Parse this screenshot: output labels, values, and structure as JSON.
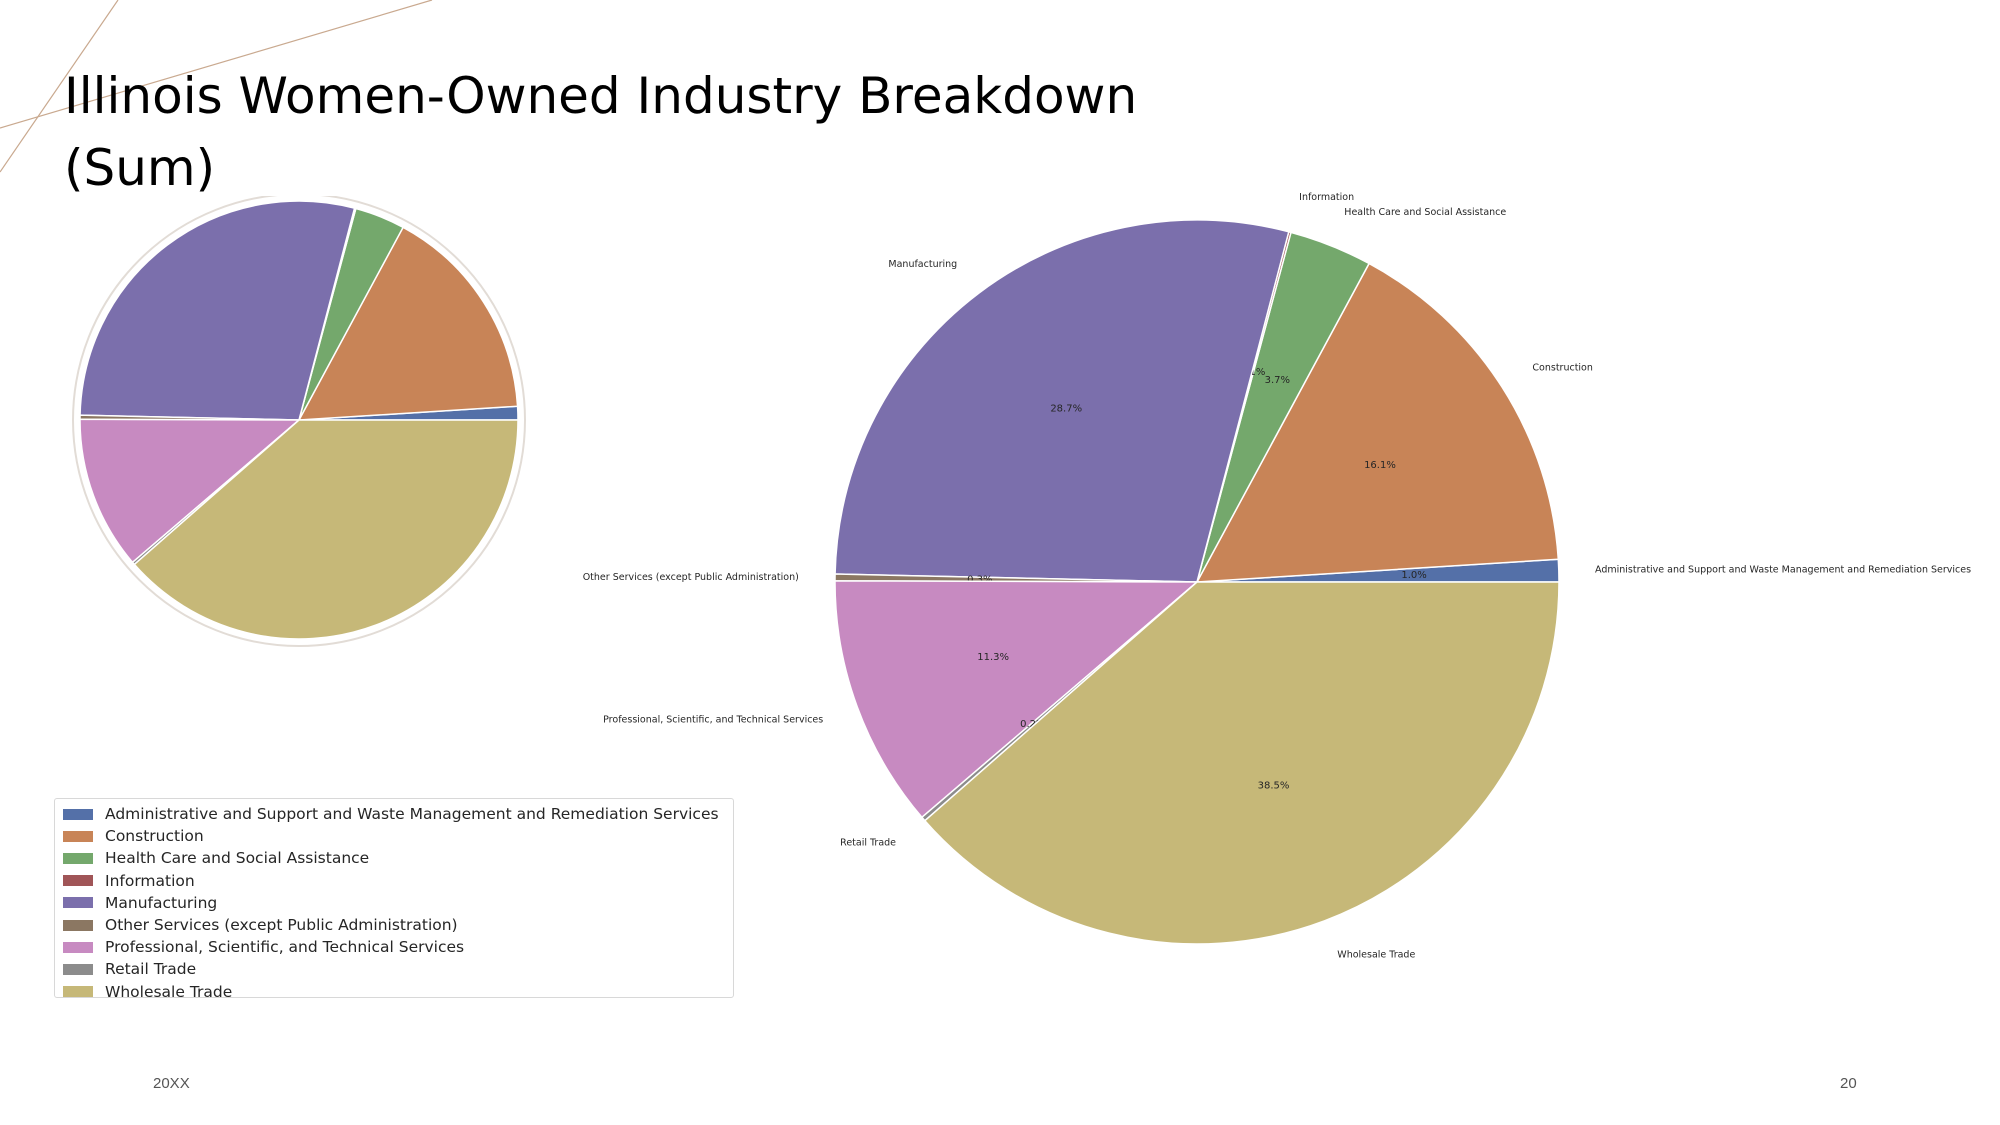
{
  "slide": {
    "title": "Illinois Women-Owned Industry Breakdown (Sum)",
    "footer_left": "20XX",
    "page_number": "20"
  },
  "colors": {
    "decor_line": "#c9a98f"
  },
  "chart_data": [
    {
      "type": "pie",
      "title": "",
      "categories": [
        "Administrative and Support and Waste Management and Remediation Services",
        "Construction",
        "Health Care and Social Assistance",
        "Information",
        "Manufacturing",
        "Other Services (except Public Administration)",
        "Professional, Scientific, and Technical Services",
        "Retail Trade",
        "Wholesale Trade"
      ],
      "values": [
        1.0,
        16.1,
        3.7,
        0.1,
        28.7,
        0.3,
        11.3,
        0.2,
        38.5
      ],
      "colors": [
        "#5470a8",
        "#c88457",
        "#74a86c",
        "#a05557",
        "#7b6fac",
        "#8b7762",
        "#c78ac1",
        "#8c8c8c",
        "#c6b878"
      ],
      "labels_shown": false,
      "legend": "below"
    },
    {
      "type": "pie",
      "title": "",
      "categories": [
        "Administrative and Support and Waste Management and Remediation Services",
        "Construction",
        "Health Care and Social Assistance",
        "Information",
        "Manufacturing",
        "Other Services (except Public Administration)",
        "Professional, Scientific, and Technical Services",
        "Retail Trade",
        "Wholesale Trade"
      ],
      "values": [
        1.0,
        16.1,
        3.7,
        0.1,
        28.7,
        0.3,
        11.3,
        0.2,
        38.5
      ],
      "value_labels": [
        "1.0%",
        "16.1%",
        "3.7%",
        "0.1%",
        "28.7%",
        "0.3%",
        "11.3%",
        "0.2%",
        "38.5%"
      ],
      "colors": [
        "#5470a8",
        "#c88457",
        "#74a86c",
        "#a05557",
        "#7b6fac",
        "#8b7762",
        "#c78ac1",
        "#8c8c8c",
        "#c6b878"
      ],
      "labels_shown": true
    }
  ]
}
